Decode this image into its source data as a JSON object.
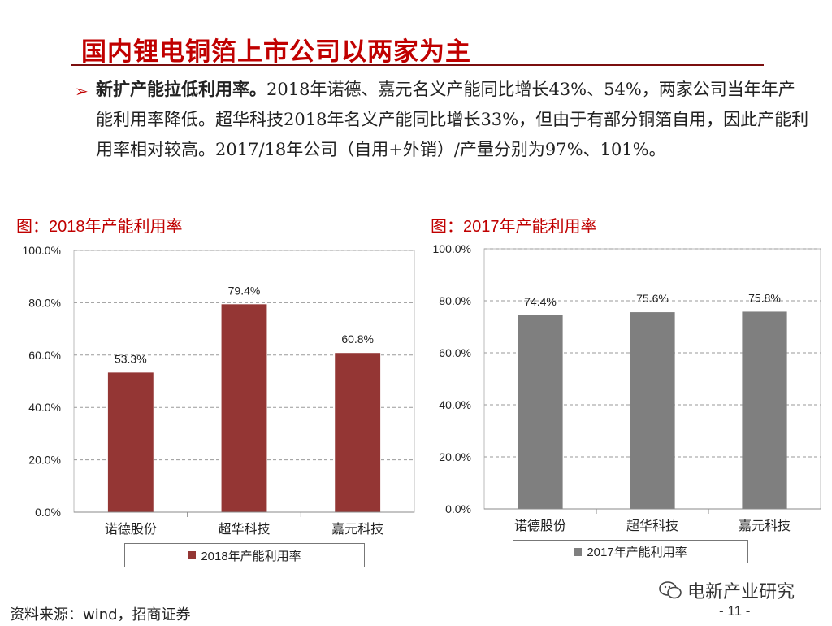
{
  "slide": {
    "title": "国内锂电铜箔上市公司以两家为主",
    "bullet_lead": "新扩产能拉低利用率。",
    "bullet_text": "2018年诺德、嘉元名义产能同比增长43%、54%，两家公司当年年产能利用率降低。超华科技2018年名义产能同比增长33%，但由于有部分铜箔自用，因此产能利用率相对较高。2017/18年公司（自用+外销）/产量分别为97%、101%。"
  },
  "figures": {
    "left_caption": "图：2018年产能利用率",
    "right_caption": "图：2017年产能利用率"
  },
  "colors": {
    "title": "#c00000",
    "bar_2018": "#943634",
    "bar_2017": "#7f7f7f"
  },
  "chart_data": [
    {
      "type": "bar",
      "title": "图：2018年产能利用率",
      "categories": [
        "诺德股份",
        "超华科技",
        "嘉元科技"
      ],
      "series": [
        {
          "name": "2018年产能利用率",
          "values": [
            53.3,
            79.4,
            60.8
          ]
        }
      ],
      "value_labels": [
        "53.3%",
        "79.4%",
        "60.8%"
      ],
      "ylim": [
        0,
        100
      ],
      "yticks": [
        "0.0%",
        "20.0%",
        "40.0%",
        "60.0%",
        "80.0%",
        "100.0%"
      ],
      "grid": true,
      "legend": "bottom"
    },
    {
      "type": "bar",
      "title": "图：2017年产能利用率",
      "categories": [
        "诺德股份",
        "超华科技",
        "嘉元科技"
      ],
      "series": [
        {
          "name": "2017年产能利用率",
          "values": [
            74.4,
            75.6,
            75.8
          ]
        }
      ],
      "value_labels": [
        "74.4%",
        "75.6%",
        "75.8%"
      ],
      "ylim": [
        0,
        100
      ],
      "yticks": [
        "0.0%",
        "20.0%",
        "40.0%",
        "60.0%",
        "80.0%",
        "100.0%"
      ],
      "grid": true,
      "legend": "bottom"
    }
  ],
  "footer": {
    "source": "资料来源：wind，招商证券",
    "brand": "电新产业研究",
    "page": "- 11 -"
  }
}
